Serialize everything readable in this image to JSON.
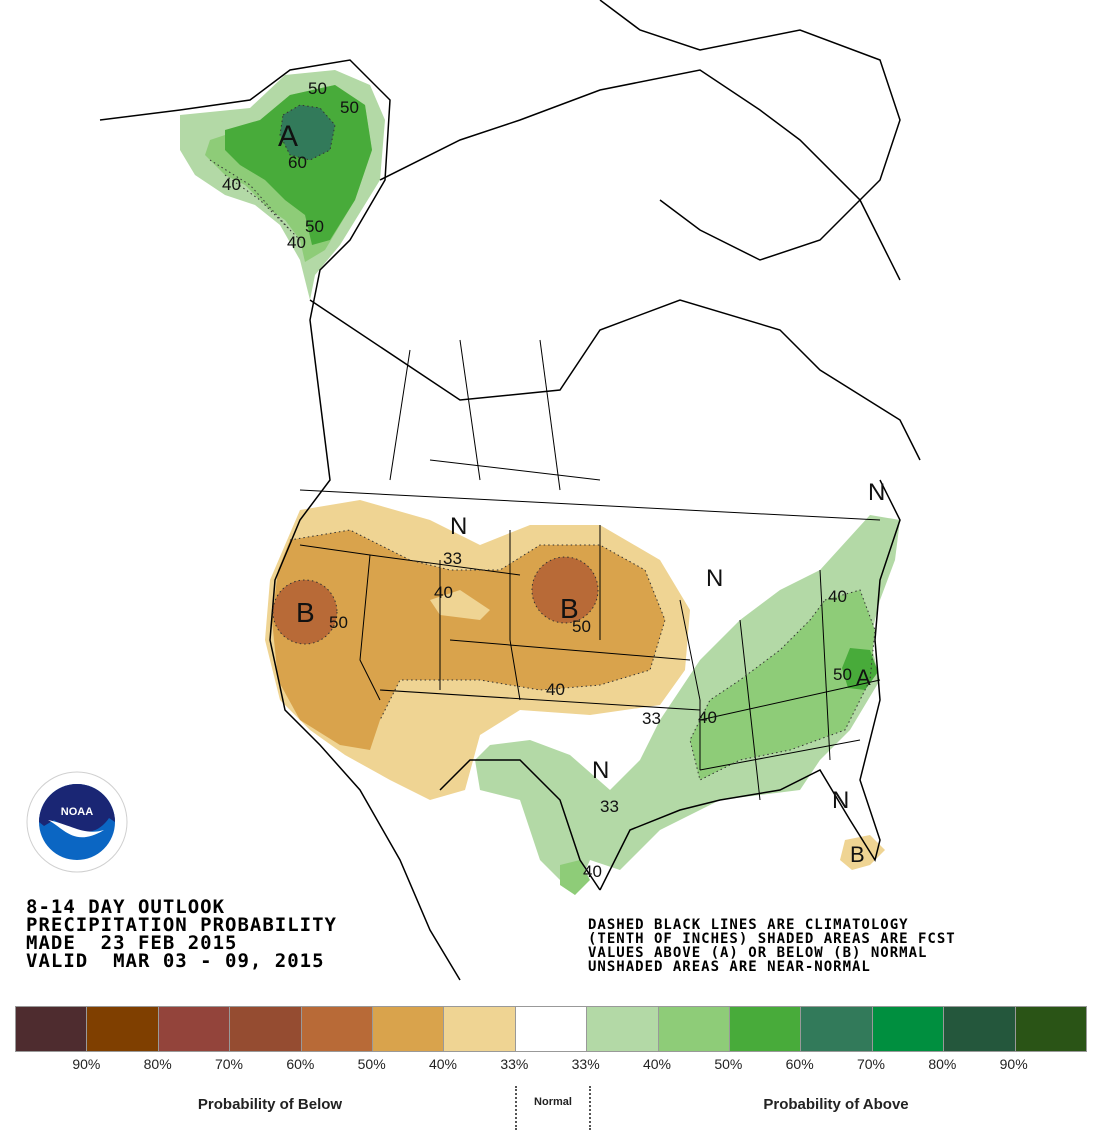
{
  "title_block": {
    "line1": "8-14 DAY OUTLOOK",
    "line2": "PRECIPITATION PROBABILITY",
    "line3": "MADE  23 FEB 2015",
    "line4": "VALID  MAR 03 - 09, 2015"
  },
  "note_block": {
    "line1": "DASHED BLACK LINES ARE CLIMATOLOGY",
    "line2": "(TENTH OF INCHES) SHADED AREAS ARE FCST",
    "line3": "VALUES ABOVE (A) OR BELOW (B) NORMAL",
    "line4": "UNSHADED AREAS ARE NEAR-NORMAL"
  },
  "logo": {
    "text": "NOAA",
    "ring_top": "NATIONAL OCEANIC AND ATMOSPHERIC ADMINISTRATION",
    "ring_bottom": "U.S. DEPARTMENT OF COMMERCE"
  },
  "legend": {
    "below_caption": "Probability of Below",
    "normal_caption": "Normal",
    "above_caption": "Probability of Above",
    "swatches": [
      {
        "color": "#4e2c2f",
        "category": "below",
        "range": "90-100%"
      },
      {
        "color": "#7f3f00",
        "category": "below",
        "range": "80-90%"
      },
      {
        "color": "#93443b",
        "category": "below",
        "range": "70-80%"
      },
      {
        "color": "#954c31",
        "category": "below",
        "range": "60-70%"
      },
      {
        "color": "#b86a37",
        "category": "below",
        "range": "50-60%"
      },
      {
        "color": "#d9a34c",
        "category": "below",
        "range": "40-50%"
      },
      {
        "color": "#efd493",
        "category": "below",
        "range": "33-40%"
      },
      {
        "color": "#ffffff",
        "category": "normal",
        "range": "near-normal"
      },
      {
        "color": "#b3d9a6",
        "category": "above",
        "range": "33-40%"
      },
      {
        "color": "#8ecc78",
        "category": "above",
        "range": "40-50%"
      },
      {
        "color": "#48ab3a",
        "category": "above",
        "range": "50-60%"
      },
      {
        "color": "#327a5a",
        "category": "above",
        "range": "60-70%"
      },
      {
        "color": "#008f3f",
        "category": "above",
        "range": "70-80%"
      },
      {
        "color": "#24573c",
        "category": "above",
        "range": "80-90%"
      },
      {
        "color": "#2a5416",
        "category": "above",
        "range": "90-100%"
      }
    ],
    "ticks": [
      "90%",
      "80%",
      "70%",
      "60%",
      "50%",
      "40%",
      "33%",
      "33%",
      "40%",
      "50%",
      "60%",
      "70%",
      "80%",
      "90%"
    ]
  },
  "map_labels": {
    "alaska_A": "A",
    "alaska_60": "60",
    "alaska_50a": "50",
    "alaska_50b": "50",
    "alaska_50c": "50",
    "alaska_40a": "40",
    "alaska_40b": "40",
    "west_B": "B",
    "west_50": "50",
    "plains_B": "B",
    "plains_50": "50",
    "n_40": "40",
    "n_33": "33",
    "plains_40": "40",
    "plains_33": "33",
    "east_A": "A",
    "east_50": "50",
    "east_40a": "40",
    "east_40b": "40",
    "tx_33": "33",
    "tx_40": "40",
    "fl_B": "B",
    "N1": "N",
    "N2": "N",
    "N3": "N",
    "N4": "N",
    "N5": "N"
  }
}
